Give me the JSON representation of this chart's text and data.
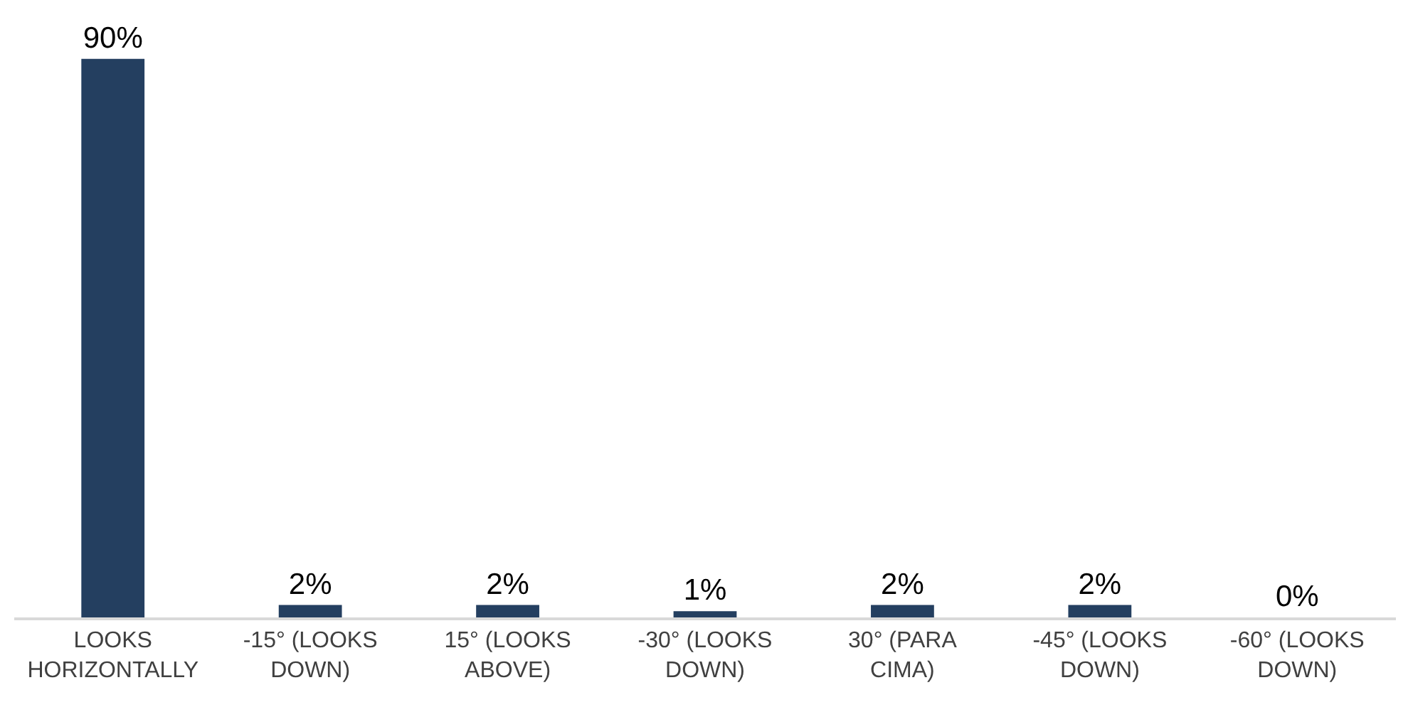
{
  "chart_data": {
    "type": "bar",
    "categories": [
      "LOOKS HORIZONTALLY",
      "-15° (LOOKS DOWN)",
      "15° (LOOKS ABOVE)",
      "-30° (LOOKS DOWN)",
      "30° (PARA CIMA)",
      "-45° (LOOKS DOWN)",
      "-60° (LOOKS DOWN)"
    ],
    "values": [
      90,
      2,
      2,
      1,
      2,
      2,
      0
    ],
    "value_labels": [
      "90%",
      "2%",
      "2%",
      "1%",
      "2%",
      "2%",
      "0%"
    ],
    "color": "#243f60"
  }
}
